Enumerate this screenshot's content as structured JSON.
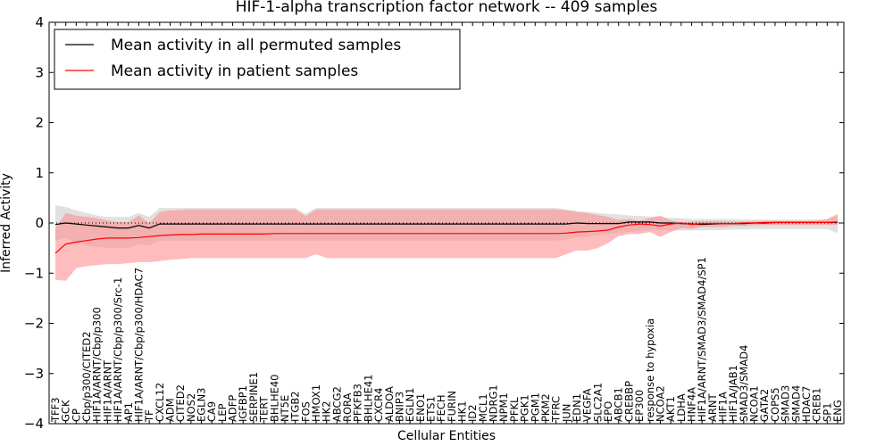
{
  "chart_data": {
    "type": "line",
    "title": "HIF-1-alpha transcription factor network -- 409 samples",
    "xlabel": "Cellular Entities",
    "ylabel": "Inferred Activity",
    "ylim": [
      -4,
      4
    ],
    "yticks": [
      4,
      3,
      2,
      1,
      0,
      -1,
      -2,
      -3,
      -4
    ],
    "ytick_labels": [
      "4",
      "3",
      "2",
      "1",
      "0",
      "−1",
      "−2",
      "−3",
      "−4"
    ],
    "grid": false,
    "legend_position": "upper-left",
    "legend": {
      "permuted_label": "Mean activity in all permuted samples",
      "patient_label": "Mean activity in patient samples"
    },
    "colors": {
      "permuted": "#000000",
      "patient": "#ff0000",
      "permuted_band": "#c8c8c8",
      "patient_band": "#ff9090"
    },
    "categories": [
      "TFF3",
      "GCK",
      "CP",
      "Cbp/p300/CITED2",
      "HIF1A/ARNT/Cbp/p300",
      "HIF1A/ARNT",
      "HIF1A/ARNT/Cbp/p300/Src-1",
      "AP1",
      "HIF1A/ARNT/Cbp/p300/HDAC7",
      "TF",
      "CXCL12",
      "ADM",
      "CITED2",
      "NOS2",
      "EGLN3",
      "CA9",
      "LEP",
      "ADFP",
      "IGFBP1",
      "SERPINE1",
      "TERT",
      "BHLHE40",
      "NT5E",
      "ITGB2",
      "FOS",
      "HMOX1",
      "HK2",
      "ABCG2",
      "RORA",
      "PFKFB3",
      "BHLHE41",
      "CXCR4",
      "ALDOA",
      "BNIP3",
      "EGLN1",
      "ENO1",
      "ETS1",
      "FECH",
      "FURIN",
      "HK1",
      "ID2",
      "MCL1",
      "NDRG1",
      "NPM1",
      "PFKL",
      "PGK1",
      "PGM1",
      "PKM2",
      "TFRC",
      "JUN",
      "EDN1",
      "VEGFA",
      "SLC2A1",
      "EPO",
      "ABCB1",
      "CREBBP",
      "EP300",
      "response to hypoxia",
      "NCOA2",
      "AKT1",
      "LDHA",
      "HNF4A",
      "HIF1A/ARNT/SMAD3/SMAD4/SP1",
      "ARNT",
      "HIF1A",
      "HIF1A/JAB1",
      "SMAD3/SMAD4",
      "NCOA1",
      "GATA2",
      "COPS5",
      "SMAD3",
      "SMAD4",
      "HDAC7",
      "CREB1",
      "SP1",
      "ENG"
    ],
    "series": [
      {
        "name": "Mean activity in all permuted samples",
        "values": [
          -0.03,
          0.0,
          -0.02,
          -0.04,
          -0.06,
          -0.08,
          -0.1,
          -0.1,
          -0.05,
          -0.1,
          -0.02,
          -0.02,
          -0.02,
          -0.02,
          -0.02,
          -0.02,
          -0.02,
          -0.02,
          -0.02,
          -0.02,
          -0.02,
          -0.02,
          -0.02,
          -0.02,
          -0.02,
          -0.02,
          -0.02,
          -0.02,
          -0.02,
          -0.02,
          -0.02,
          -0.02,
          -0.02,
          -0.02,
          -0.02,
          -0.02,
          -0.02,
          -0.02,
          -0.02,
          -0.02,
          -0.02,
          -0.02,
          -0.02,
          -0.02,
          -0.02,
          -0.02,
          -0.02,
          -0.02,
          -0.02,
          -0.02,
          0.0,
          -0.01,
          -0.01,
          -0.01,
          -0.01,
          0.02,
          0.02,
          0.02,
          0.0,
          0.0,
          -0.01,
          -0.02,
          -0.03,
          -0.02,
          -0.01,
          -0.01,
          -0.01,
          0.0,
          0.0,
          0.01,
          0.01,
          0.01,
          0.01,
          0.01,
          0.01,
          0.01
        ],
        "lower": [
          -0.35,
          -0.3,
          -0.4,
          -0.45,
          -0.48,
          -0.5,
          -0.5,
          -0.5,
          -0.42,
          -0.45,
          -0.35,
          -0.35,
          -0.35,
          -0.35,
          -0.35,
          -0.35,
          -0.35,
          -0.35,
          -0.35,
          -0.35,
          -0.35,
          -0.35,
          -0.35,
          -0.35,
          -0.35,
          -0.35,
          -0.35,
          -0.35,
          -0.35,
          -0.35,
          -0.35,
          -0.35,
          -0.35,
          -0.35,
          -0.35,
          -0.35,
          -0.35,
          -0.35,
          -0.35,
          -0.35,
          -0.35,
          -0.35,
          -0.35,
          -0.35,
          -0.35,
          -0.35,
          -0.35,
          -0.35,
          -0.35,
          -0.33,
          -0.28,
          -0.27,
          -0.25,
          -0.22,
          -0.2,
          -0.18,
          -0.16,
          -0.14,
          -0.14,
          -0.15,
          -0.15,
          -0.15,
          -0.15,
          -0.14,
          -0.14,
          -0.13,
          -0.13,
          -0.12,
          -0.12,
          -0.12,
          -0.12,
          -0.12,
          -0.12,
          -0.12,
          -0.12,
          -0.2
        ],
        "upper": [
          0.35,
          0.32,
          0.25,
          0.2,
          0.15,
          0.12,
          0.12,
          0.12,
          0.2,
          0.12,
          0.3,
          0.3,
          0.3,
          0.3,
          0.3,
          0.3,
          0.3,
          0.3,
          0.3,
          0.3,
          0.3,
          0.3,
          0.3,
          0.3,
          0.18,
          0.3,
          0.3,
          0.3,
          0.3,
          0.3,
          0.3,
          0.3,
          0.3,
          0.3,
          0.3,
          0.3,
          0.3,
          0.3,
          0.3,
          0.3,
          0.3,
          0.3,
          0.3,
          0.3,
          0.3,
          0.3,
          0.3,
          0.3,
          0.3,
          0.27,
          0.24,
          0.22,
          0.2,
          0.18,
          0.17,
          0.15,
          0.14,
          0.13,
          0.12,
          0.1,
          0.1,
          0.08,
          0.08,
          0.08,
          0.08,
          0.08,
          0.07,
          0.07,
          0.07,
          0.07,
          0.07,
          0.07,
          0.07,
          0.07,
          0.07,
          0.15
        ]
      },
      {
        "name": "Mean activity in patient samples",
        "values": [
          -0.6,
          -0.42,
          -0.38,
          -0.35,
          -0.32,
          -0.3,
          -0.3,
          -0.3,
          -0.29,
          -0.27,
          -0.25,
          -0.24,
          -0.23,
          -0.23,
          -0.22,
          -0.22,
          -0.22,
          -0.22,
          -0.22,
          -0.22,
          -0.22,
          -0.21,
          -0.21,
          -0.21,
          -0.21,
          -0.21,
          -0.21,
          -0.21,
          -0.21,
          -0.21,
          -0.21,
          -0.21,
          -0.21,
          -0.21,
          -0.21,
          -0.21,
          -0.21,
          -0.21,
          -0.21,
          -0.21,
          -0.21,
          -0.21,
          -0.21,
          -0.21,
          -0.21,
          -0.21,
          -0.21,
          -0.21,
          -0.21,
          -0.2,
          -0.18,
          -0.17,
          -0.16,
          -0.14,
          -0.08,
          -0.04,
          -0.02,
          -0.03,
          -0.06,
          -0.02,
          0.0,
          -0.03,
          -0.01,
          -0.01,
          -0.01,
          -0.01,
          0.0,
          0.0,
          0.01,
          0.01,
          0.01,
          0.01,
          0.01,
          0.01,
          0.01,
          0.02
        ],
        "lower": [
          -1.13,
          -1.15,
          -0.9,
          -0.86,
          -0.84,
          -0.82,
          -0.82,
          -0.8,
          -0.78,
          -0.78,
          -0.76,
          -0.73,
          -0.72,
          -0.7,
          -0.7,
          -0.7,
          -0.7,
          -0.7,
          -0.7,
          -0.7,
          -0.7,
          -0.7,
          -0.7,
          -0.7,
          -0.7,
          -0.62,
          -0.7,
          -0.7,
          -0.7,
          -0.7,
          -0.7,
          -0.7,
          -0.7,
          -0.7,
          -0.7,
          -0.7,
          -0.7,
          -0.7,
          -0.7,
          -0.7,
          -0.7,
          -0.7,
          -0.7,
          -0.7,
          -0.7,
          -0.7,
          -0.7,
          -0.7,
          -0.7,
          -0.62,
          -0.55,
          -0.55,
          -0.5,
          -0.4,
          -0.26,
          -0.22,
          -0.22,
          -0.18,
          -0.28,
          -0.18,
          -0.1,
          -0.12,
          -0.08,
          -0.08,
          -0.08,
          -0.06,
          -0.06,
          -0.05,
          -0.04,
          -0.04,
          -0.04,
          -0.04,
          -0.04,
          -0.04,
          -0.04,
          -0.04
        ],
        "upper": [
          -0.1,
          0.2,
          0.15,
          0.12,
          0.1,
          0.05,
          0.02,
          0.02,
          0.15,
          0.0,
          0.22,
          0.25,
          0.26,
          0.27,
          0.27,
          0.27,
          0.27,
          0.27,
          0.27,
          0.27,
          0.27,
          0.27,
          0.27,
          0.27,
          0.14,
          0.27,
          0.27,
          0.27,
          0.27,
          0.27,
          0.27,
          0.27,
          0.27,
          0.27,
          0.27,
          0.27,
          0.27,
          0.27,
          0.27,
          0.27,
          0.27,
          0.27,
          0.27,
          0.27,
          0.27,
          0.27,
          0.27,
          0.27,
          0.27,
          0.25,
          0.22,
          0.2,
          0.16,
          0.12,
          0.06,
          0.08,
          0.05,
          0.1,
          0.15,
          0.05,
          0.02,
          0.03,
          0.04,
          0.04,
          0.04,
          0.03,
          0.03,
          0.04,
          0.04,
          0.04,
          0.04,
          0.04,
          0.04,
          0.05,
          0.08,
          0.18
        ]
      }
    ]
  }
}
